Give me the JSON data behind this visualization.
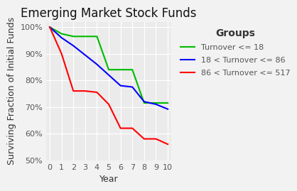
{
  "title": "Emerging Market Stock Funds",
  "xlabel": "Year",
  "ylabel": "Surviving Fraction of Initial Funds",
  "background_color": "#EBEBEB",
  "grid_color": "#FFFFFF",
  "fig_background": "#F2F2F2",
  "ylim": [
    0.5,
    1.02
  ],
  "xlim": [
    -0.3,
    10.3
  ],
  "yticks": [
    0.5,
    0.6,
    0.7,
    0.8,
    0.9,
    1.0
  ],
  "xticks": [
    0,
    1,
    2,
    3,
    4,
    5,
    6,
    7,
    8,
    9,
    10
  ],
  "series": [
    {
      "label": "Turnover <= 18",
      "color": "#00BB00",
      "x": [
        0,
        1,
        2,
        3,
        4,
        5,
        6,
        7,
        8,
        9,
        10
      ],
      "y": [
        1.0,
        0.975,
        0.965,
        0.965,
        0.965,
        0.84,
        0.84,
        0.84,
        0.715,
        0.715,
        0.715
      ]
    },
    {
      "label": "18 < Turnover <= 86",
      "color": "#0000FF",
      "x": [
        0,
        1,
        2,
        3,
        4,
        5,
        6,
        7,
        8,
        9,
        10
      ],
      "y": [
        1.0,
        0.96,
        0.93,
        0.895,
        0.86,
        0.82,
        0.78,
        0.775,
        0.72,
        0.71,
        0.692
      ]
    },
    {
      "label": "86 < Turnover <= 517",
      "color": "#FF0000",
      "x": [
        0,
        1,
        2,
        3,
        4,
        5,
        6,
        7,
        8,
        9,
        10
      ],
      "y": [
        1.0,
        0.9,
        0.76,
        0.76,
        0.755,
        0.71,
        0.62,
        0.62,
        0.58,
        0.58,
        0.56
      ]
    }
  ],
  "legend_title": "Groups",
  "legend_title_fontsize": 10,
  "legend_fontsize": 8,
  "title_fontsize": 12,
  "axis_label_fontsize": 9,
  "tick_fontsize": 8,
  "line_width": 1.5
}
